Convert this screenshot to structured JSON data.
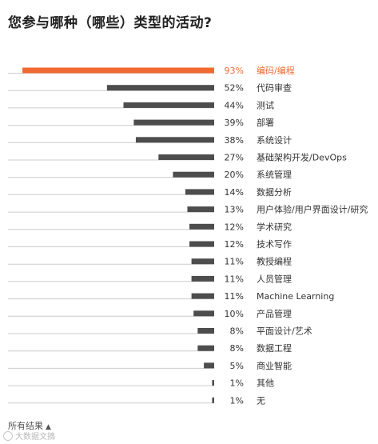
{
  "title": "您参与哪种（哪些）类型的活动?",
  "footer": {
    "label": "所有结果",
    "caret": "▲"
  },
  "watermark": {
    "text": "大数据文摘"
  },
  "colors": {
    "highlight": "#f26a33",
    "bar": "#4d4d4d",
    "baseline": "#cccccc",
    "text": "#333333"
  },
  "chart_data": {
    "type": "bar",
    "orientation": "horizontal",
    "title": "您参与哪种（哪些）类型的活动?",
    "categories": [
      "编码/编程",
      "代码审查",
      "测试",
      "部署",
      "系统设计",
      "基础架构开发/DevOps",
      "系统管理",
      "数据分析",
      "用户体验/用户界面设计/研究",
      "学术研究",
      "技术写作",
      "教授编程",
      "人员管理",
      "Machine Learning",
      "产品管理",
      "平面设计/艺术",
      "数据工程",
      "商业智能",
      "其他",
      "无"
    ],
    "values": [
      93,
      52,
      44,
      39,
      38,
      27,
      20,
      14,
      13,
      12,
      12,
      11,
      11,
      11,
      10,
      8,
      8,
      5,
      1,
      1
    ],
    "value_labels": [
      "93%",
      "52%",
      "44%",
      "39%",
      "38%",
      "27%",
      "20%",
      "14%",
      "13%",
      "12%",
      "12%",
      "11%",
      "11%",
      "11%",
      "10%",
      "8%",
      "8%",
      "5%",
      "1%",
      "1%"
    ],
    "unit": "%",
    "xlim": [
      0,
      100
    ],
    "highlighted_index": 0,
    "grid": false,
    "legend": "none"
  }
}
